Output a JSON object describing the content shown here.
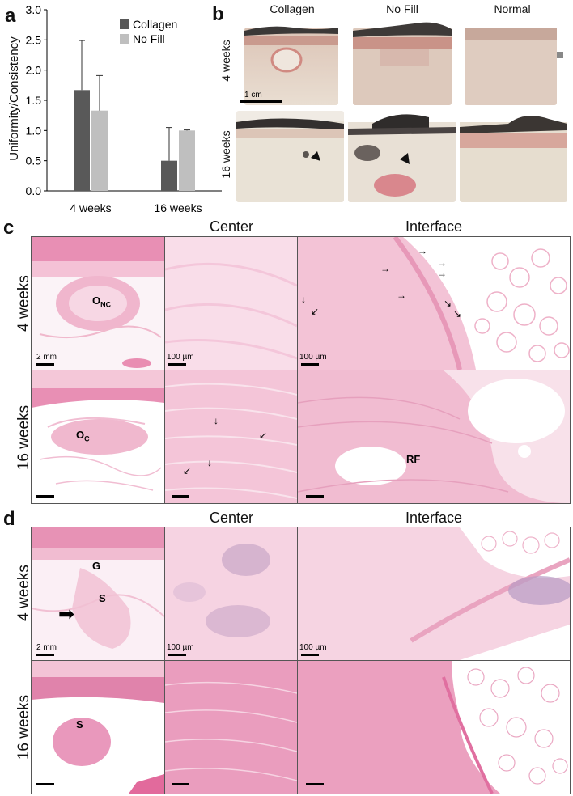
{
  "panel_labels": {
    "a": "a",
    "b": "b",
    "c": "c",
    "d": "d"
  },
  "chart_data": {
    "type": "bar",
    "categories": [
      "4 weeks",
      "16 weeks"
    ],
    "series": [
      {
        "name": "Collagen",
        "values": [
          1.67,
          0.5
        ],
        "errors": [
          0.82,
          0.55
        ],
        "color": "#595959"
      },
      {
        "name": "No Fill",
        "values": [
          1.33,
          1.0
        ],
        "errors": [
          0.58,
          0.01
        ],
        "color": "#bfbfbf"
      }
    ],
    "ylabel": "Uniformity/Consistency",
    "xlabel": "",
    "ylim": [
      0,
      3.0
    ],
    "yticks": [
      "0.0",
      "0.5",
      "1.0",
      "1.5",
      "2.0",
      "2.5",
      "3.0"
    ],
    "legend": "top-right",
    "grid": false
  },
  "panel_b": {
    "columns": [
      "Collagen",
      "No Fill",
      "Normal"
    ],
    "rows": [
      "4 weeks",
      "16 weeks"
    ],
    "scalebar": "1 cm"
  },
  "panel_c": {
    "columns": [
      "Center",
      "Interface"
    ],
    "rows": [
      "4 weeks",
      "16 weeks"
    ],
    "scalebars": {
      "low": "2 mm",
      "high": "100 µm"
    },
    "labels": {
      "onc_main": "O",
      "onc_sub": "NC",
      "oc_main": "O",
      "oc_sub": "C",
      "rf": "RF"
    }
  },
  "panel_d": {
    "columns": [
      "Center",
      "Interface"
    ],
    "rows": [
      "4 weeks",
      "16 weeks"
    ],
    "scalebars": {
      "low": "2 mm",
      "high": "100 µm"
    },
    "labels": {
      "g": "G",
      "s1": "S",
      "s2": "S"
    }
  },
  "colors": {
    "bar_collagen": "#595959",
    "bar_nofill": "#bfbfbf",
    "he_pink": "#f2c4d6",
    "he_dark": "#e07aa6",
    "fat": "#ffffff"
  }
}
